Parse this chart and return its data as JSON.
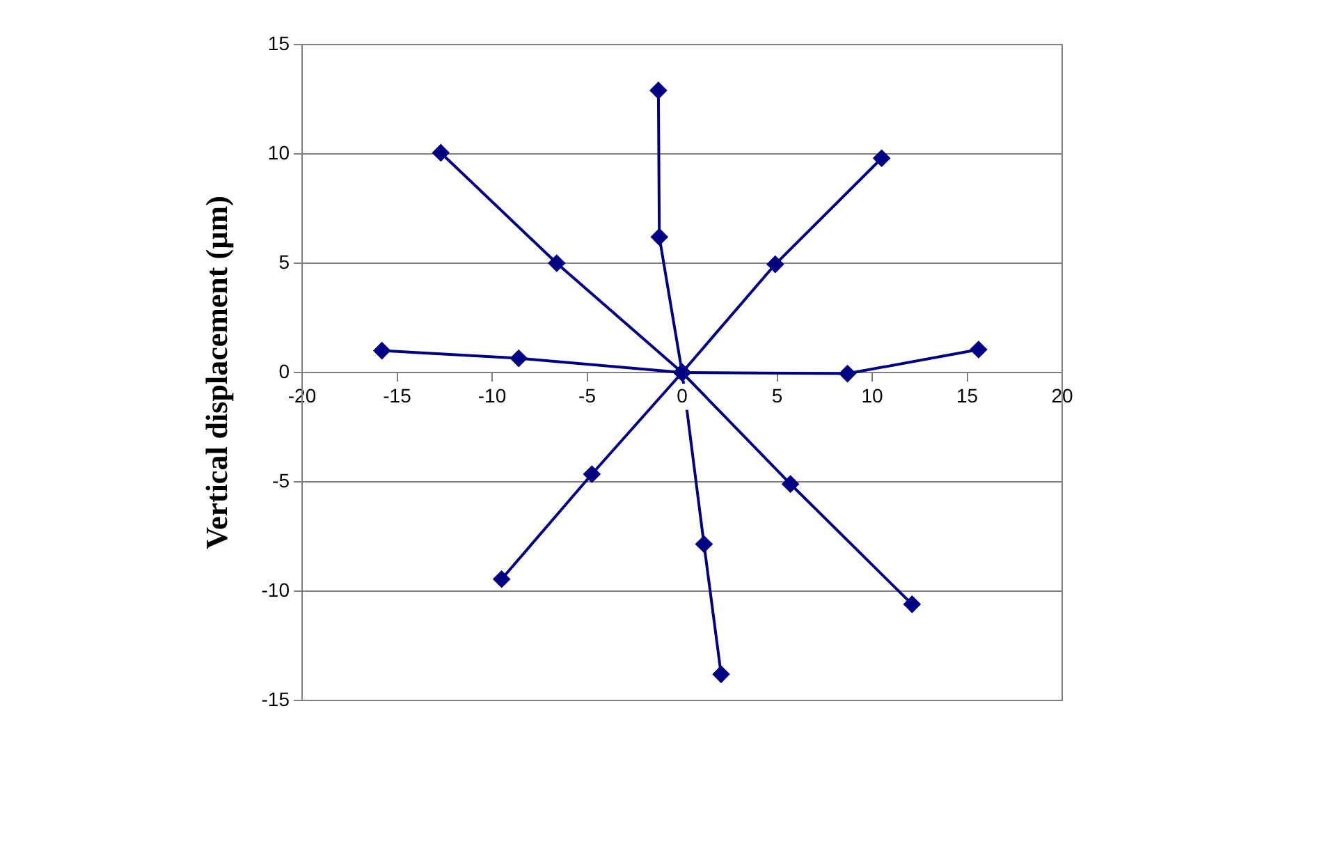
{
  "chart_data": {
    "type": "line",
    "ylabel": "Vertical displacement (µm)",
    "xlim": [
      -20,
      20
    ],
    "xticks": [
      -20,
      -15,
      -10,
      -5,
      0,
      5,
      10,
      15,
      20
    ],
    "ylim": [
      -15,
      15
    ],
    "yticks": [
      -15,
      -10,
      -5,
      0,
      5,
      10,
      15
    ],
    "grid": "y",
    "legend": false,
    "marker": "diamond",
    "line_style": "solid",
    "series": [
      {
        "color": "#000080",
        "x": [
          0,
          -1.2,
          -1.25
        ],
        "values": [
          0,
          6.2,
          12.9
        ]
      },
      {
        "color": "#000080",
        "x": [
          0,
          -6.6,
          -12.7
        ],
        "values": [
          0,
          5.0,
          10.05
        ]
      },
      {
        "color": "#000080",
        "x": [
          0,
          4.9,
          10.5
        ],
        "values": [
          0,
          4.95,
          9.8
        ]
      },
      {
        "color": "#000080",
        "x": [
          0,
          -8.6,
          -15.8
        ],
        "values": [
          0,
          0.65,
          1.0
        ]
      },
      {
        "color": "#000080",
        "x": [
          0,
          8.7,
          15.6
        ],
        "values": [
          0,
          -0.05,
          1.05
        ]
      },
      {
        "color": "#000080",
        "x": [
          0,
          -4.75,
          -9.5
        ],
        "values": [
          0,
          -4.65,
          -9.45
        ]
      },
      {
        "color": "#000080",
        "x": [
          0,
          5.7,
          12.1
        ],
        "values": [
          0,
          -5.1,
          -10.6
        ]
      },
      {
        "color": "#000080",
        "x": [
          0,
          1.15,
          2.05
        ],
        "values": [
          0,
          -7.85,
          -13.8
        ]
      }
    ]
  }
}
